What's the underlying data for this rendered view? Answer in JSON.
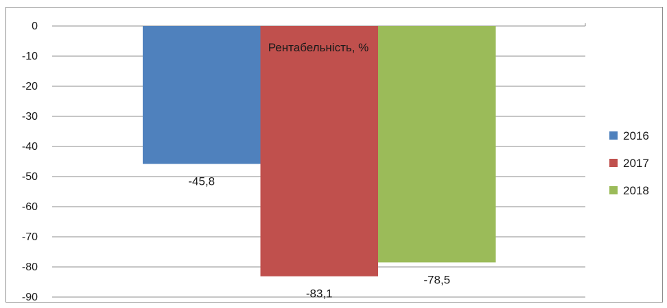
{
  "chart_data": {
    "type": "bar",
    "title": "Рентабельність, %",
    "ylim": [
      -90,
      0
    ],
    "ytick_step": 10,
    "yticks": [
      "0",
      "-10",
      "-20",
      "-30",
      "-40",
      "-50",
      "-60",
      "-70",
      "-80",
      "-90"
    ],
    "grid": true,
    "legend_position": "right",
    "series": [
      {
        "name": "2016",
        "value": -45.8,
        "label": "-45,8",
        "color": "#4f81bd"
      },
      {
        "name": "2017",
        "value": -83.1,
        "label": "-83,1",
        "color": "#c0504d"
      },
      {
        "name": "2018",
        "value": -78.5,
        "label": "-78,5",
        "color": "#9bbb59"
      }
    ]
  }
}
